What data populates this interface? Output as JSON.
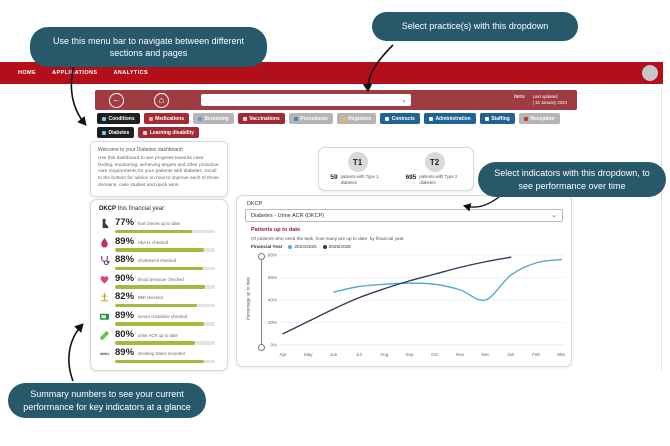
{
  "annotations": {
    "menu_bar": "Use this menu bar to navigate between different sections and pages",
    "practice_dropdown": "Select practice(s) with this dropdown",
    "indicators": "Select indicators with this dropdown, to see performance over time",
    "summary": "Summary numbers to see your current performance for key indicators at a glance"
  },
  "navbar": {
    "items": [
      "HOME",
      "APPLICATIONS",
      "ANALYTICS"
    ],
    "active": "ANALYTICS"
  },
  "toolbar": {
    "back_icon": "←",
    "home_icon": "⌂",
    "practice_select_value": "",
    "beta_label": "beta",
    "last_updated_label": "Last updated",
    "last_updated_value": "| 15 January 2024"
  },
  "tabs": {
    "row1": [
      {
        "label": "Conditions",
        "style": "dark",
        "icon": "clipboard-icon",
        "icon_color": "#7ec8e3"
      },
      {
        "label": "Medications",
        "style": "red",
        "icon": "pill-icon",
        "icon_color": "#f0a8a8"
      },
      {
        "label": "Screening",
        "style": "gray",
        "icon": "magnifier-icon",
        "icon_color": "#5b9bd5"
      },
      {
        "label": "Vaccinations",
        "style": "red",
        "icon": "syringe-icon",
        "icon_color": "#f3d5d5"
      },
      {
        "label": "Procedures",
        "style": "gray",
        "icon": "calendar-icon",
        "icon_color": "#4a7fb5"
      },
      {
        "label": "Registers",
        "style": "gray",
        "icon": "folder-icon",
        "icon_color": "#e8c44a"
      },
      {
        "label": "Contracts",
        "style": "blue",
        "icon": "document-icon",
        "icon_color": "#ffffff"
      },
      {
        "label": "Administration",
        "style": "blue",
        "icon": "building-icon",
        "icon_color": "#ffffff"
      },
      {
        "label": "Staffing",
        "style": "blue",
        "icon": "person-icon",
        "icon_color": "#ffffff"
      },
      {
        "label": "Reception",
        "style": "gray",
        "icon": "phone-icon",
        "icon_color": "#c0392b"
      }
    ],
    "row2": [
      {
        "label": "Diabetes",
        "style": "dark",
        "icon": "drop-icon",
        "icon_color": "#7ec8e3"
      },
      {
        "label": "Learning disability",
        "style": "red",
        "icon": "puzzle-icon",
        "icon_color": "#f3d5d5"
      }
    ]
  },
  "welcome": {
    "title": "Welcome to your Diabetes dashboard!",
    "body": "Use this dashboard to see progress towards case finding, monitoring, achieving targets and other proactive care requirements for your patients with diabetes. Scroll to the bottom for advice on how to improve each of these domains, case studies and quick wins."
  },
  "patient_counts": {
    "t1": {
      "badge": "T1",
      "count": "59",
      "label": "patients with Type 1 diabetes"
    },
    "t2": {
      "badge": "T2",
      "count": "695",
      "label": "patients with Type 2 diabetes"
    }
  },
  "indicators_panel": {
    "title_prefix": "DKCP",
    "title_rest": " this financial year:",
    "items": [
      {
        "percent": "77%",
        "value": 77,
        "label": "foot checks up to date",
        "icon": "foot-icon",
        "shape": "foot",
        "color": "#3a3a3a"
      },
      {
        "percent": "89%",
        "value": 89,
        "label": "HbA1c checked",
        "icon": "blood-drop-icon",
        "shape": "drop",
        "color": "#c9256b"
      },
      {
        "percent": "88%",
        "value": 88,
        "label": "cholesterol checked",
        "icon": "stethoscope-icon",
        "shape": "stethoscope",
        "color": "#7a3b93"
      },
      {
        "percent": "90%",
        "value": 90,
        "label": "blood pressure checked",
        "icon": "heart-icon",
        "shape": "heart",
        "color": "#e0457b"
      },
      {
        "percent": "82%",
        "value": 82,
        "label": "BMI checked",
        "icon": "scale-icon",
        "shape": "scale",
        "color": "#c9a227"
      },
      {
        "percent": "89%",
        "value": 89,
        "label": "serum creatinine checked",
        "icon": "test-kit-icon",
        "shape": "meter",
        "color": "#2f8f46"
      },
      {
        "percent": "80%",
        "value": 80,
        "label": "urine ACR up to date",
        "icon": "test-tube-icon",
        "shape": "testtube",
        "color": "#6abf4b"
      },
      {
        "percent": "89%",
        "value": 89,
        "label": "smoking status recorded",
        "icon": "cigarette-icon",
        "shape": "cigarette",
        "color": "#9a9a9a"
      }
    ],
    "bar_color": "#a6b93d"
  },
  "chart_panel": {
    "header": "DKCP",
    "select_value": "Diabetes - Urine ACR (DKCP)"
  },
  "chart_data": {
    "type": "line",
    "title": "Patients up to date",
    "subtitle": "Of patients who need the task, how many are up to date, by financial year.",
    "legend_label": "Financial Year",
    "legend_position": "top",
    "ylabel": "Percentage up to date",
    "ylim": [
      0,
      80
    ],
    "yticks": [
      0,
      20,
      40,
      60,
      80
    ],
    "ytick_labels": [
      "0%",
      "20%",
      "40%",
      "60%",
      "80%"
    ],
    "x": [
      "Apr",
      "May",
      "Jun",
      "Jul",
      "Aug",
      "Sep",
      "Oct",
      "Nov",
      "Dec",
      "Jan",
      "Feb",
      "Mar"
    ],
    "grid": true,
    "series": [
      {
        "name": "2024/2025",
        "color": "#5aa7d4",
        "values": [
          null,
          null,
          47,
          52,
          54,
          55,
          54,
          49,
          40,
          62,
          73,
          76
        ]
      },
      {
        "name": "2025/2026",
        "color": "#2f3d5c",
        "values": [
          10,
          21,
          32,
          42,
          50,
          57,
          63,
          69,
          74,
          78,
          null,
          null
        ]
      }
    ]
  },
  "colors": {
    "annotation_teal": "#27596a",
    "navbar_red": "#b30f1a",
    "toolbar_red": "#9e3c42",
    "tab_red": "#a12a35",
    "tab_blue": "#1f6396",
    "tab_gray": "#b5b5b5",
    "tab_dark": "#1f1f1f",
    "progress_green": "#a6b93d",
    "chart_title_maroon": "#8c2332"
  }
}
